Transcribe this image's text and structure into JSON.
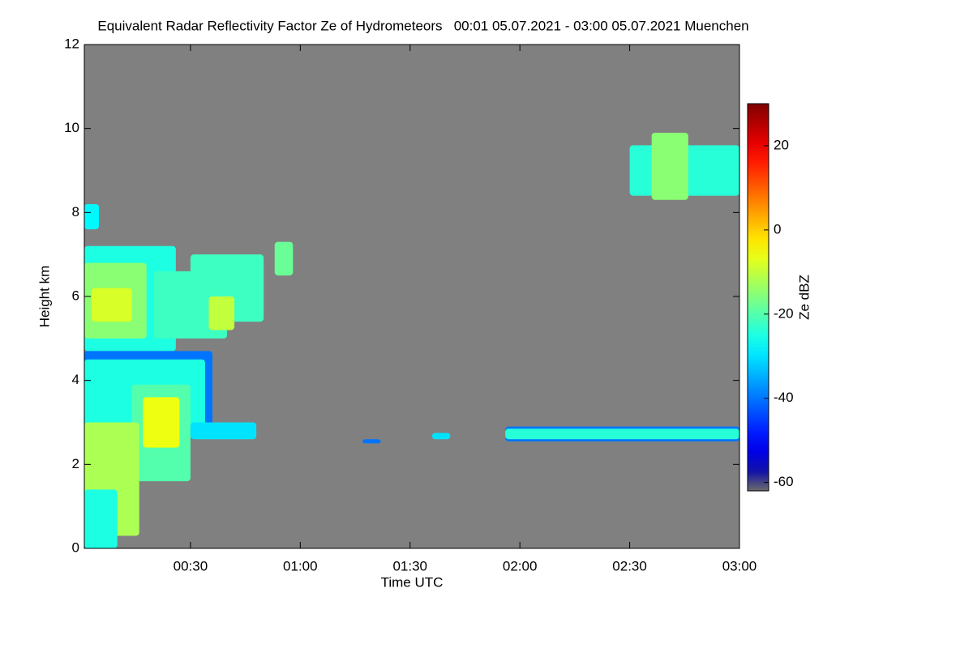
{
  "chart_data": {
    "type": "heatmap",
    "title": "Equivalent Radar Reflectivity Factor Ze of Hydrometeors   00:01 05.07.2021 - 03:00 05.07.2021 Muenchen",
    "xlabel": "Time UTC",
    "ylabel": "Height km",
    "colorbar_label": "Ze dBZ",
    "colormap": "jet",
    "background": "#808080",
    "xlim": [
      1,
      180
    ],
    "xticks": [
      {
        "value": 30,
        "label": "00:30"
      },
      {
        "value": 60,
        "label": "01:00"
      },
      {
        "value": 90,
        "label": "01:30"
      },
      {
        "value": 120,
        "label": "02:00"
      },
      {
        "value": 150,
        "label": "02:30"
      },
      {
        "value": 180,
        "label": "03:00"
      }
    ],
    "ylim": [
      0,
      12
    ],
    "yticks": [
      0,
      2,
      4,
      6,
      8,
      10,
      12
    ],
    "clim": [
      -62,
      30
    ],
    "cticks": [
      -60,
      -40,
      -20,
      0,
      20
    ],
    "cells": {
      "x0": [
        1,
        1,
        1,
        3,
        20,
        30,
        35,
        53,
        1,
        1,
        14,
        17,
        1,
        1,
        30,
        96,
        116,
        116,
        150,
        156,
        77
      ],
      "x1": [
        5,
        26,
        18,
        14,
        40,
        50,
        42,
        58,
        36,
        34,
        30,
        27,
        16,
        10,
        48,
        101,
        180,
        180,
        180,
        166,
        82
      ],
      "y0": [
        7.6,
        4.7,
        5.0,
        5.4,
        5.0,
        5.4,
        5.2,
        6.5,
        2.7,
        2.9,
        1.6,
        2.4,
        0.3,
        0,
        2.6,
        2.6,
        2.55,
        2.6,
        8.4,
        8.3,
        2.5
      ],
      "y1": [
        8.2,
        7.2,
        6.8,
        6.2,
        6.6,
        7.0,
        6.0,
        7.3,
        4.7,
        4.5,
        3.9,
        3.6,
        3.0,
        1.4,
        3.0,
        2.75,
        2.9,
        2.85,
        9.6,
        9.9,
        2.6
      ],
      "values": [
        -28,
        -25,
        -15,
        -8,
        -22,
        -22,
        -10,
        -18,
        -40,
        -25,
        -20,
        -6,
        -12,
        -25,
        -30,
        -30,
        -40,
        -24,
        -24,
        -15,
        -40
      ]
    }
  }
}
